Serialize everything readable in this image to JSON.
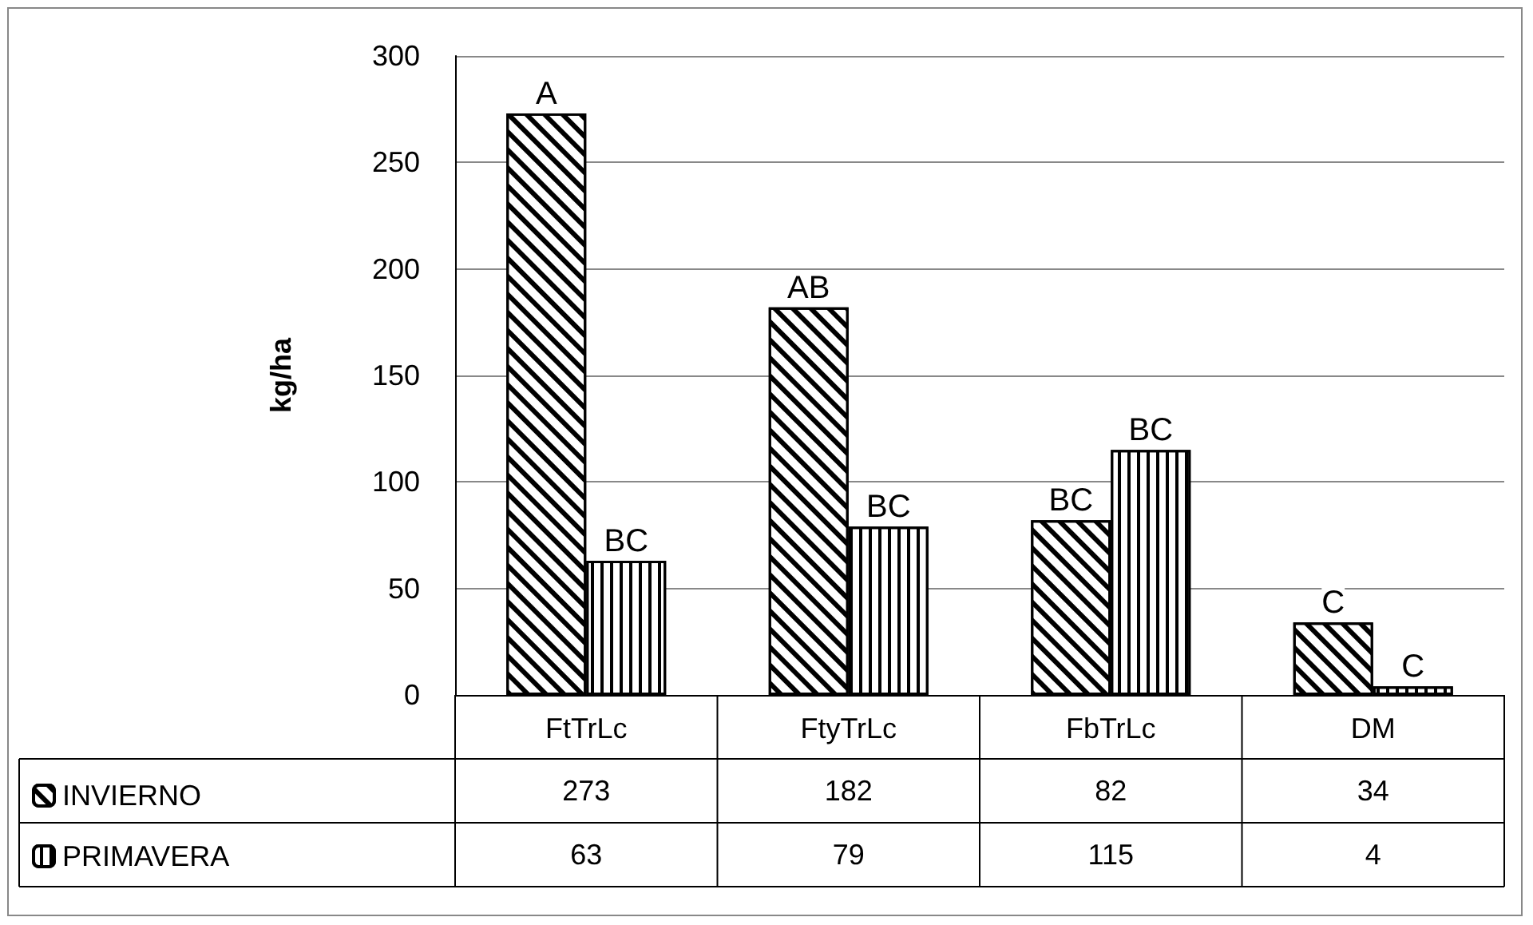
{
  "chart_data": {
    "type": "bar",
    "ylabel": "kg/ha",
    "categories": [
      "FtTrLc",
      "FtyTrLc",
      "FbTrLc",
      "DM"
    ],
    "series": [
      {
        "name": "INVIERNO",
        "color": "#000000",
        "values": [
          273,
          182,
          82,
          34
        ]
      },
      {
        "name": "PRIMAVERA",
        "color": "#000000",
        "values": [
          63,
          79,
          115,
          4
        ]
      }
    ],
    "ylim": [
      0,
      300
    ],
    "yticks": [
      0,
      50,
      100,
      150,
      200,
      250,
      300
    ],
    "grid": "y",
    "legend": "bottom left",
    "data_labels": true,
    "annotations": [
      {
        "text": "A",
        "x": "FtTrLc",
        "y": 273
      },
      {
        "text": "BC",
        "x": "FtTrLc",
        "y": 63
      },
      {
        "text": "AB",
        "x": "FtyTrLc",
        "y": 182
      },
      {
        "text": "BC",
        "x": "FtyTrLc",
        "y": 79
      },
      {
        "text": "BC",
        "x": "FbTrLc",
        "y": 82
      },
      {
        "text": "BC",
        "x": "FbTrLc",
        "y": 115
      },
      {
        "text": "C",
        "x": "DM",
        "y": 34
      },
      {
        "text": "C",
        "x": "DM",
        "y": 4
      }
    ]
  }
}
